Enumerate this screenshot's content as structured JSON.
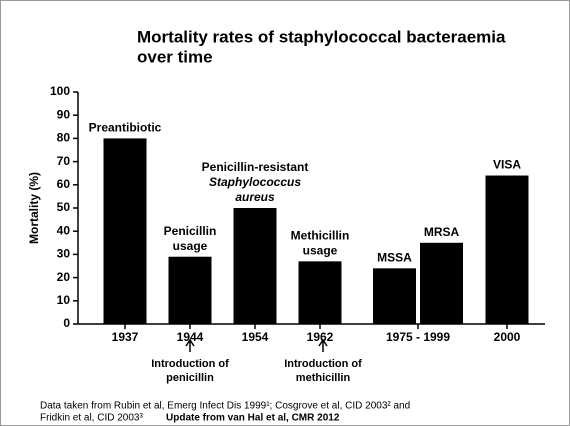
{
  "chart_data": {
    "type": "bar",
    "title": [
      "Mortality rates of staphylococcal bacteraemia",
      "over time"
    ],
    "y_label": "Mortality (%)",
    "ylim": [
      0,
      100
    ],
    "yticks": [
      0,
      10,
      20,
      30,
      40,
      50,
      60,
      70,
      80,
      90,
      100
    ],
    "color": "#000000",
    "categories": [
      {
        "label": "1937",
        "bars": [
          {
            "name": [
              "Preantibiotic"
            ],
            "value": 80
          }
        ]
      },
      {
        "label": "1944",
        "bars": [
          {
            "name": [
              "Penicillin",
              "usage"
            ],
            "value": 29
          }
        ]
      },
      {
        "label": "1954",
        "bars": [
          {
            "name": [
              "Penicillin-resistant",
              "Staphylococcus",
              "aureus"
            ],
            "value": 50
          }
        ]
      },
      {
        "label": "1962",
        "bars": [
          {
            "name": [
              "Methicillin",
              "usage"
            ],
            "value": 27
          }
        ]
      },
      {
        "label": "1975 - 1999",
        "bars": [
          {
            "name": [
              "MSSA"
            ],
            "value": 24
          },
          {
            "name": [
              "MRSA"
            ],
            "value": 35
          }
        ]
      },
      {
        "label": "2000",
        "bars": [
          {
            "name": [
              "VISA"
            ],
            "value": 64
          }
        ]
      }
    ],
    "annotations": [
      [
        "Introduction of",
        "penicillin"
      ],
      [
        "Introduction of",
        "methicillin"
      ]
    ],
    "source": [
      "Data taken from Rubin et al, Emerg Infect Dis 1999¹; Cosgrove et al, CID 2003² and",
      "Fridkin et al, CID 2003³"
    ],
    "update": "Update from van Hal et al, CMR 2012"
  }
}
